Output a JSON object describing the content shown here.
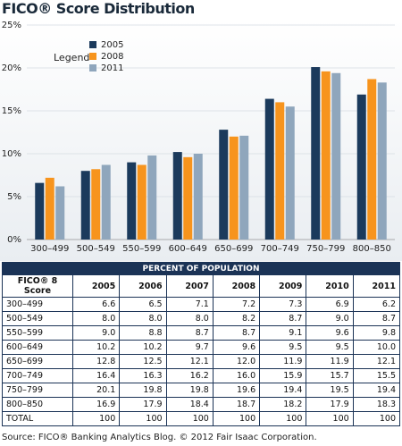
{
  "chart_data": {
    "type": "bar",
    "title": "FICO® Score Distribution",
    "categories": [
      "300–499",
      "500–549",
      "550–599",
      "600–649",
      "650–699",
      "700–749",
      "750–799",
      "800–850"
    ],
    "series": [
      {
        "name": "2005",
        "color": "#1b3a5c",
        "values": [
          6.6,
          8.0,
          9.0,
          10.2,
          12.8,
          16.4,
          20.1,
          16.9
        ]
      },
      {
        "name": "2008",
        "color": "#f7941d",
        "values": [
          7.2,
          8.2,
          8.7,
          9.6,
          12.0,
          16.0,
          19.6,
          18.7
        ]
      },
      {
        "name": "2011",
        "color": "#8fa6bc",
        "values": [
          6.2,
          8.7,
          9.8,
          10.0,
          12.1,
          15.5,
          19.4,
          18.3
        ]
      }
    ],
    "legend_title": "Legend",
    "legend_position": "top-left",
    "ylim": [
      0,
      25
    ],
    "yticks": [
      {
        "value": 0,
        "label": "0%"
      },
      {
        "value": 5,
        "label": "5%"
      },
      {
        "value": 10,
        "label": "10%"
      },
      {
        "value": 15,
        "label": "15%"
      },
      {
        "value": 20,
        "label": "20%"
      },
      {
        "value": 25,
        "label": "25%"
      }
    ],
    "grid": true
  },
  "table": {
    "title": "PERCENT OF POPULATION",
    "header": [
      "FICO® 8 Score",
      "2005",
      "2006",
      "2007",
      "2008",
      "2009",
      "2010",
      "2011"
    ],
    "rows": [
      [
        "300–499",
        "6.6",
        "6.5",
        "7.1",
        "7.2",
        "7.3",
        "6.9",
        "6.2"
      ],
      [
        "500–549",
        "8.0",
        "8.0",
        "8.0",
        "8.2",
        "8.7",
        "9.0",
        "8.7"
      ],
      [
        "550–599",
        "9.0",
        "8.8",
        "8.7",
        "8.7",
        "9.1",
        "9.6",
        "9.8"
      ],
      [
        "600–649",
        "10.2",
        "10.2",
        "9.7",
        "9.6",
        "9.5",
        "9.5",
        "10.0"
      ],
      [
        "650–699",
        "12.8",
        "12.5",
        "12.1",
        "12.0",
        "11.9",
        "11.9",
        "12.1"
      ],
      [
        "700–749",
        "16.4",
        "16.3",
        "16.2",
        "16.0",
        "15.9",
        "15.7",
        "15.5"
      ],
      [
        "750–799",
        "20.1",
        "19.8",
        "19.8",
        "19.6",
        "19.4",
        "19.5",
        "19.4"
      ],
      [
        "800–850",
        "16.9",
        "17.9",
        "18.4",
        "18.7",
        "18.2",
        "17.9",
        "18.3"
      ],
      [
        "TOTAL",
        "100",
        "100",
        "100",
        "100",
        "100",
        "100",
        "100"
      ]
    ]
  },
  "source": "Source: FICO® Banking Analytics Blog. © 2012 Fair Isaac Corporation."
}
